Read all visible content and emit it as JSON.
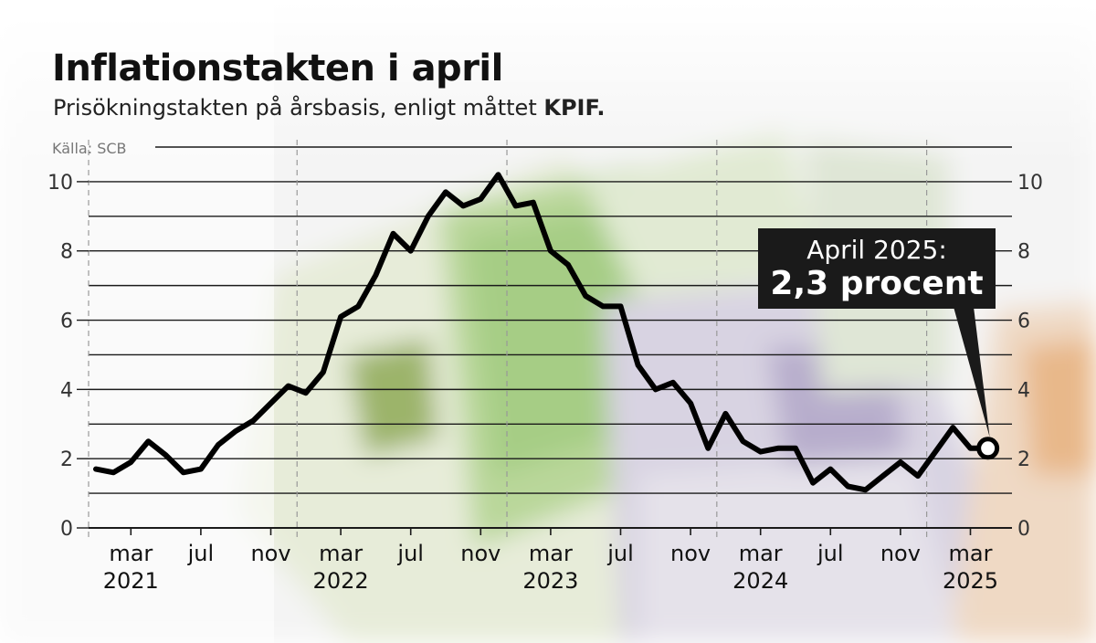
{
  "title": "Inflationstakten i april",
  "subtitle_prefix": "Prisökningstakten på årsbasis, enligt måttet ",
  "subtitle_bold": "KPIF.",
  "source": "Källa: SCB",
  "callout": {
    "line1": "April 2025:",
    "line2": "2,3 procent"
  },
  "colors": {
    "line": "#000000",
    "grid": "#1a1a1a",
    "callout_bg": "#1a1a1a"
  },
  "chart_data": {
    "type": "line",
    "ylim": [
      0,
      11
    ],
    "y_ticks": [
      0,
      2,
      4,
      6,
      8,
      10
    ],
    "x_ticks": [
      {
        "month": "mar",
        "year": "2021",
        "date": "2021-03"
      },
      {
        "month": "jul",
        "year": "",
        "date": "2021-07"
      },
      {
        "month": "nov",
        "year": "",
        "date": "2021-11"
      },
      {
        "month": "mar",
        "year": "2022",
        "date": "2022-03"
      },
      {
        "month": "jul",
        "year": "",
        "date": "2022-07"
      },
      {
        "month": "nov",
        "year": "",
        "date": "2022-11"
      },
      {
        "month": "mar",
        "year": "2023",
        "date": "2023-03"
      },
      {
        "month": "jul",
        "year": "",
        "date": "2023-07"
      },
      {
        "month": "nov",
        "year": "",
        "date": "2023-11"
      },
      {
        "month": "mar",
        "year": "2024",
        "date": "2024-03"
      },
      {
        "month": "jul",
        "year": "",
        "date": "2024-07"
      },
      {
        "month": "nov",
        "year": "",
        "date": "2024-11"
      },
      {
        "month": "mar",
        "year": "2025",
        "date": "2025-03"
      }
    ],
    "year_dividers": [
      "2021-12.5",
      "2022-12.5",
      "2023-12.5",
      "2024-12.5"
    ],
    "x": [
      "2021-01",
      "2021-02",
      "2021-03",
      "2021-04",
      "2021-05",
      "2021-06",
      "2021-07",
      "2021-08",
      "2021-09",
      "2021-10",
      "2021-11",
      "2021-12",
      "2022-01",
      "2022-02",
      "2022-03",
      "2022-04",
      "2022-05",
      "2022-06",
      "2022-07",
      "2022-08",
      "2022-09",
      "2022-10",
      "2022-11",
      "2022-12",
      "2023-01",
      "2023-02",
      "2023-03",
      "2023-04",
      "2023-05",
      "2023-06",
      "2023-07",
      "2023-08",
      "2023-09",
      "2023-10",
      "2023-11",
      "2023-12",
      "2024-01",
      "2024-02",
      "2024-03",
      "2024-04",
      "2024-05",
      "2024-06",
      "2024-07",
      "2024-08",
      "2024-09",
      "2024-10",
      "2024-11",
      "2024-12",
      "2025-01",
      "2025-02",
      "2025-03",
      "2025-04"
    ],
    "values": [
      1.7,
      1.6,
      1.9,
      2.5,
      2.1,
      1.6,
      1.7,
      2.4,
      2.8,
      3.1,
      3.6,
      4.1,
      3.9,
      4.5,
      6.1,
      6.4,
      7.3,
      8.5,
      8.0,
      9.0,
      9.7,
      9.3,
      9.5,
      10.2,
      9.3,
      9.4,
      8.0,
      7.6,
      6.7,
      6.4,
      6.4,
      4.7,
      4.0,
      4.2,
      3.6,
      2.3,
      3.3,
      2.5,
      2.2,
      2.3,
      2.3,
      1.3,
      1.7,
      1.2,
      1.1,
      1.5,
      1.9,
      1.5,
      2.2,
      2.9,
      2.3,
      2.3
    ],
    "highlight": {
      "x": "2025-04",
      "value": 2.3
    }
  }
}
